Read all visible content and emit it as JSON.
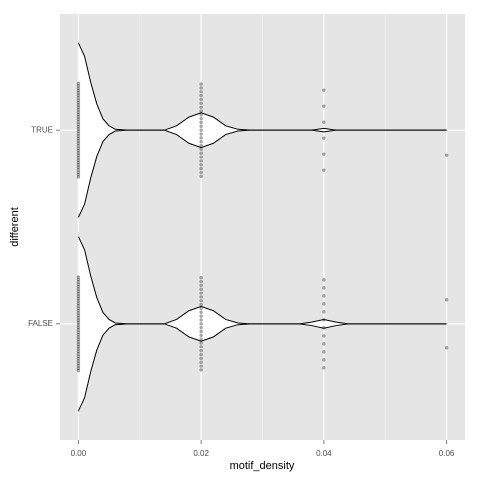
{
  "chart_data": {
    "type": "violin",
    "x_label": "motif_density",
    "y_label": "different",
    "categories": [
      "TRUE",
      "FALSE"
    ],
    "xlim": [
      -0.003,
      0.063
    ],
    "xticks": [
      {
        "value": 0,
        "label": "0.00"
      },
      {
        "value": 0.02,
        "label": "0.02"
      },
      {
        "value": 0.04,
        "label": "0.04"
      },
      {
        "value": 0.06,
        "label": "0.06"
      }
    ],
    "xminor": [
      0.01,
      0.03,
      0.05
    ],
    "grid": true,
    "color": "#000000",
    "fill": "#ffffff",
    "background": "#e5e5e5",
    "groups": [
      {
        "density_x": [
          0,
          0.001,
          0.002,
          0.003,
          0.004,
          0.005,
          0.006,
          0.008,
          0.014,
          0.016,
          0.018,
          0.02,
          0.022,
          0.024,
          0.026,
          0.028,
          0.038,
          0.04,
          0.042,
          0.06
        ],
        "density": [
          1,
          0.85,
          0.55,
          0.3,
          0.13,
          0.05,
          0.01,
          0,
          0,
          0.05,
          0.15,
          0.2,
          0.15,
          0.05,
          0.01,
          0,
          0,
          0.02,
          0,
          0
        ],
        "points": [
          0,
          0,
          0,
          0,
          0,
          0,
          0,
          0,
          0,
          0,
          0,
          0,
          0,
          0,
          0,
          0,
          0,
          0,
          0,
          0,
          0,
          0,
          0,
          0,
          0,
          0,
          0,
          0,
          0,
          0,
          0,
          0,
          0,
          0,
          0,
          0,
          0,
          0,
          0,
          0,
          0.02,
          0.02,
          0.02,
          0.02,
          0.02,
          0.02,
          0.02,
          0.02,
          0.02,
          0.02,
          0.02,
          0.02,
          0.02,
          0.02,
          0.02,
          0.02,
          0.02,
          0.02,
          0.02,
          0.02,
          0.02,
          0.02,
          0.02,
          0.02,
          0.02,
          0.04,
          0.04,
          0.04,
          0.04,
          0.04,
          0.04,
          0.06
        ]
      },
      {
        "density_x": [
          0,
          0.001,
          0.002,
          0.003,
          0.004,
          0.005,
          0.006,
          0.008,
          0.014,
          0.016,
          0.018,
          0.02,
          0.022,
          0.024,
          0.026,
          0.028,
          0.036,
          0.038,
          0.04,
          0.042,
          0.044,
          0.06
        ],
        "density": [
          1,
          0.85,
          0.55,
          0.3,
          0.13,
          0.05,
          0.01,
          0,
          0,
          0.05,
          0.15,
          0.2,
          0.15,
          0.05,
          0.01,
          0,
          0,
          0.02,
          0.05,
          0.02,
          0,
          0
        ],
        "points": [
          0,
          0,
          0,
          0,
          0,
          0,
          0,
          0,
          0,
          0,
          0,
          0,
          0,
          0,
          0,
          0,
          0,
          0,
          0,
          0,
          0,
          0,
          0,
          0,
          0,
          0,
          0,
          0,
          0,
          0,
          0,
          0,
          0,
          0,
          0,
          0,
          0,
          0,
          0,
          0,
          0.02,
          0.02,
          0.02,
          0.02,
          0.02,
          0.02,
          0.02,
          0.02,
          0.02,
          0.02,
          0.02,
          0.02,
          0.02,
          0.02,
          0.02,
          0.02,
          0.02,
          0.02,
          0.02,
          0.02,
          0.02,
          0.02,
          0.02,
          0.02,
          0.02,
          0.04,
          0.04,
          0.04,
          0.04,
          0.04,
          0.04,
          0.04,
          0.04,
          0.04,
          0.04,
          0.04,
          0.04,
          0.06,
          0.06
        ]
      }
    ]
  }
}
